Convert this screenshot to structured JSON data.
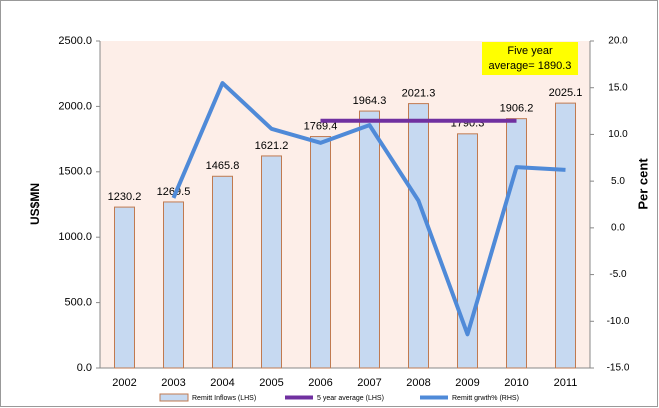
{
  "chart_data": {
    "type": "bar",
    "categories": [
      "2002",
      "2003",
      "2004",
      "2005",
      "2006",
      "2007",
      "2008",
      "2009",
      "2010",
      "2011"
    ],
    "series": [
      {
        "name": "Remitt Inflows (LHS)",
        "color": "#c6d9f1",
        "edge": "#c07a50",
        "kind": "bar",
        "values": [
          1230.2,
          1269.5,
          1465.8,
          1621.2,
          1769.4,
          1964.3,
          2021.3,
          1790.3,
          1906.2,
          2025.1
        ]
      },
      {
        "name": "5 year average (LHS)",
        "color": "#7030a0",
        "kind": "line",
        "values": [
          null,
          null,
          null,
          null,
          1890.3,
          1890.3,
          1890.3,
          1890.3,
          1890.3,
          null
        ]
      },
      {
        "name": "Remitt grwth% (RHS)",
        "color": "#4f8ad8",
        "kind": "line",
        "axis": "y2",
        "values": [
          null,
          3.2,
          15.5,
          10.6,
          9.1,
          11.0,
          2.9,
          -11.4,
          6.5,
          6.2
        ]
      }
    ],
    "ylabel": "US$MN",
    "y2label": "Per cent",
    "ylim": [
      0,
      2500
    ],
    "yticks": [
      {
        "value": 0,
        "label": "0.0"
      },
      {
        "value": 500,
        "label": "500.0"
      },
      {
        "value": 1000,
        "label": "1000.0"
      },
      {
        "value": 1500,
        "label": "1500.0"
      },
      {
        "value": 2000,
        "label": "2000.0"
      },
      {
        "value": 2500,
        "label": "2500.0"
      }
    ],
    "y2lim": [
      -15,
      20
    ],
    "y2ticks": [
      {
        "value": -15,
        "label": "-15.0"
      },
      {
        "value": -10,
        "label": "-10.0"
      },
      {
        "value": -5,
        "label": "-5.0"
      },
      {
        "value": 0,
        "label": "0.0"
      },
      {
        "value": 5,
        "label": "5.0"
      },
      {
        "value": 10,
        "label": "10.0"
      },
      {
        "value": 15,
        "label": "15.0"
      },
      {
        "value": 20,
        "label": "20.0"
      }
    ],
    "annotation": [
      "Five year",
      "average= 1890.3"
    ],
    "background": "#fdeee8"
  }
}
